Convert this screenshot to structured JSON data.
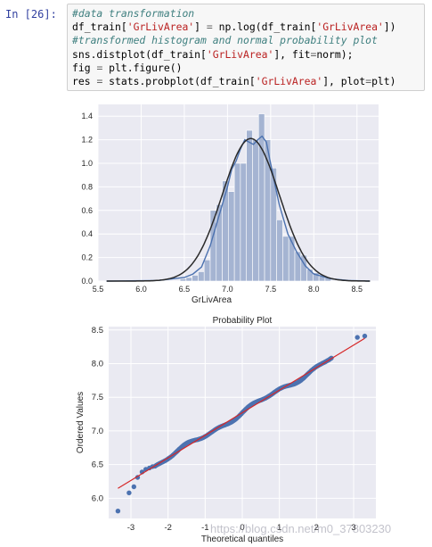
{
  "cell": {
    "prompt": "In  [26]:",
    "code_lines": [
      [
        {
          "t": "#data transformation",
          "c": "cm"
        }
      ],
      [
        {
          "t": "df_train[",
          "c": ""
        },
        {
          "t": "'GrLivArea'",
          "c": "st"
        },
        {
          "t": "] ",
          "c": ""
        },
        {
          "t": "=",
          "c": "op"
        },
        {
          "t": " np.log(df_train[",
          "c": ""
        },
        {
          "t": "'GrLivArea'",
          "c": "st"
        },
        {
          "t": "])",
          "c": ""
        }
      ],
      [
        {
          "t": "#transformed histogram and normal probability plot",
          "c": "cm"
        }
      ],
      [
        {
          "t": "sns.distplot(df_train[",
          "c": ""
        },
        {
          "t": "'GrLivArea'",
          "c": "st"
        },
        {
          "t": "], fit",
          "c": ""
        },
        {
          "t": "=",
          "c": "op"
        },
        {
          "t": "norm);",
          "c": ""
        }
      ],
      [
        {
          "t": "fig ",
          "c": ""
        },
        {
          "t": "=",
          "c": "op"
        },
        {
          "t": " plt.figure()",
          "c": ""
        }
      ],
      [
        {
          "t": "res ",
          "c": ""
        },
        {
          "t": "=",
          "c": "op"
        },
        {
          "t": " stats.probplot(df_train[",
          "c": ""
        },
        {
          "t": "'GrLivArea'",
          "c": "st"
        },
        {
          "t": "], plot",
          "c": ""
        },
        {
          "t": "=",
          "c": "op"
        },
        {
          "t": "plt)",
          "c": ""
        }
      ]
    ]
  },
  "watermark": "https://blog.csdn.net/m0_37803230",
  "colors": {
    "axes_bg": "#eaeaf2",
    "hist_fill": "#a5b4d2",
    "hist_edge": "#ffffff",
    "kde_line": "#4c72b0",
    "norm_line": "#2a2a2a",
    "point": "#4c72b0",
    "fit_line": "#d62728",
    "tick_text": "#262626"
  },
  "chart_data": [
    {
      "type": "bar",
      "title": "",
      "xlabel": "GrLivArea",
      "ylabel": "",
      "xlim": [
        5.5,
        8.75
      ],
      "ylim": [
        0,
        1.5
      ],
      "xticks": [
        "5.5",
        "6.0",
        "6.5",
        "7.0",
        "7.5",
        "8.0",
        "8.5"
      ],
      "yticks": [
        "0.0",
        "0.2",
        "0.4",
        "0.6",
        "0.8",
        "1.0",
        "1.2",
        "1.4"
      ],
      "bins": [
        {
          "x0": 6.45,
          "x1": 6.52,
          "v": 0.02
        },
        {
          "x0": 6.52,
          "x1": 6.59,
          "v": 0.03
        },
        {
          "x0": 6.59,
          "x1": 6.66,
          "v": 0.05
        },
        {
          "x0": 6.66,
          "x1": 6.73,
          "v": 0.08
        },
        {
          "x0": 6.73,
          "x1": 6.8,
          "v": 0.18
        },
        {
          "x0": 6.8,
          "x1": 6.87,
          "v": 0.6
        },
        {
          "x0": 6.87,
          "x1": 6.94,
          "v": 0.65
        },
        {
          "x0": 6.94,
          "x1": 7.01,
          "v": 0.85
        },
        {
          "x0": 7.01,
          "x1": 7.08,
          "v": 0.76
        },
        {
          "x0": 7.08,
          "x1": 7.15,
          "v": 1.0
        },
        {
          "x0": 7.15,
          "x1": 7.22,
          "v": 1.0
        },
        {
          "x0": 7.22,
          "x1": 7.29,
          "v": 1.28
        },
        {
          "x0": 7.29,
          "x1": 7.36,
          "v": 1.2
        },
        {
          "x0": 7.36,
          "x1": 7.43,
          "v": 1.42
        },
        {
          "x0": 7.43,
          "x1": 7.5,
          "v": 1.2
        },
        {
          "x0": 7.5,
          "x1": 7.57,
          "v": 0.96
        },
        {
          "x0": 7.57,
          "x1": 7.64,
          "v": 0.52
        },
        {
          "x0": 7.64,
          "x1": 7.71,
          "v": 0.38
        },
        {
          "x0": 7.71,
          "x1": 7.78,
          "v": 0.38
        },
        {
          "x0": 7.78,
          "x1": 7.85,
          "v": 0.25
        },
        {
          "x0": 7.85,
          "x1": 7.92,
          "v": 0.22
        },
        {
          "x0": 7.92,
          "x1": 7.99,
          "v": 0.1
        },
        {
          "x0": 7.99,
          "x1": 8.06,
          "v": 0.07
        },
        {
          "x0": 8.06,
          "x1": 8.13,
          "v": 0.04
        },
        {
          "x0": 8.13,
          "x1": 8.2,
          "v": 0.03
        }
      ],
      "kde_x": [
        5.6,
        6.2,
        6.5,
        6.6,
        6.7,
        6.8,
        6.9,
        7.0,
        7.05,
        7.1,
        7.15,
        7.2,
        7.25,
        7.3,
        7.35,
        7.4,
        7.45,
        7.5,
        7.55,
        7.6,
        7.7,
        7.8,
        7.9,
        8.0,
        8.2,
        8.4,
        8.65
      ],
      "kde_y": [
        0.0,
        0.005,
        0.03,
        0.06,
        0.12,
        0.3,
        0.55,
        0.8,
        0.95,
        1.02,
        1.12,
        1.2,
        1.18,
        1.16,
        1.2,
        1.23,
        1.18,
        1.0,
        0.82,
        0.65,
        0.4,
        0.25,
        0.13,
        0.06,
        0.02,
        0.005,
        0.0
      ],
      "norm_mu": 7.27,
      "norm_sigma": 0.33,
      "norm_peak": 1.21
    },
    {
      "type": "scatter",
      "title": "Probability Plot",
      "xlabel": "Theoretical quantiles",
      "ylabel": "Ordered Values",
      "xlim": [
        -3.6,
        3.6
      ],
      "ylim": [
        5.7,
        8.55
      ],
      "xticks": [
        "-3",
        "-2",
        "-1",
        "0",
        "1",
        "2",
        "3"
      ],
      "yticks": [
        "6.0",
        "6.5",
        "7.0",
        "7.5",
        "8.0",
        "8.5"
      ],
      "fit_slope": 0.335,
      "fit_intercept": 7.27,
      "outliers": [
        [
          -3.35,
          5.81
        ],
        [
          -3.05,
          6.08
        ],
        [
          -2.92,
          6.17
        ],
        [
          -2.82,
          6.31
        ],
        [
          -2.7,
          6.39
        ],
        [
          -2.6,
          6.43
        ],
        [
          -2.5,
          6.45
        ],
        [
          -2.42,
          6.47
        ],
        [
          3.1,
          8.39
        ],
        [
          3.3,
          8.41
        ]
      ]
    }
  ]
}
